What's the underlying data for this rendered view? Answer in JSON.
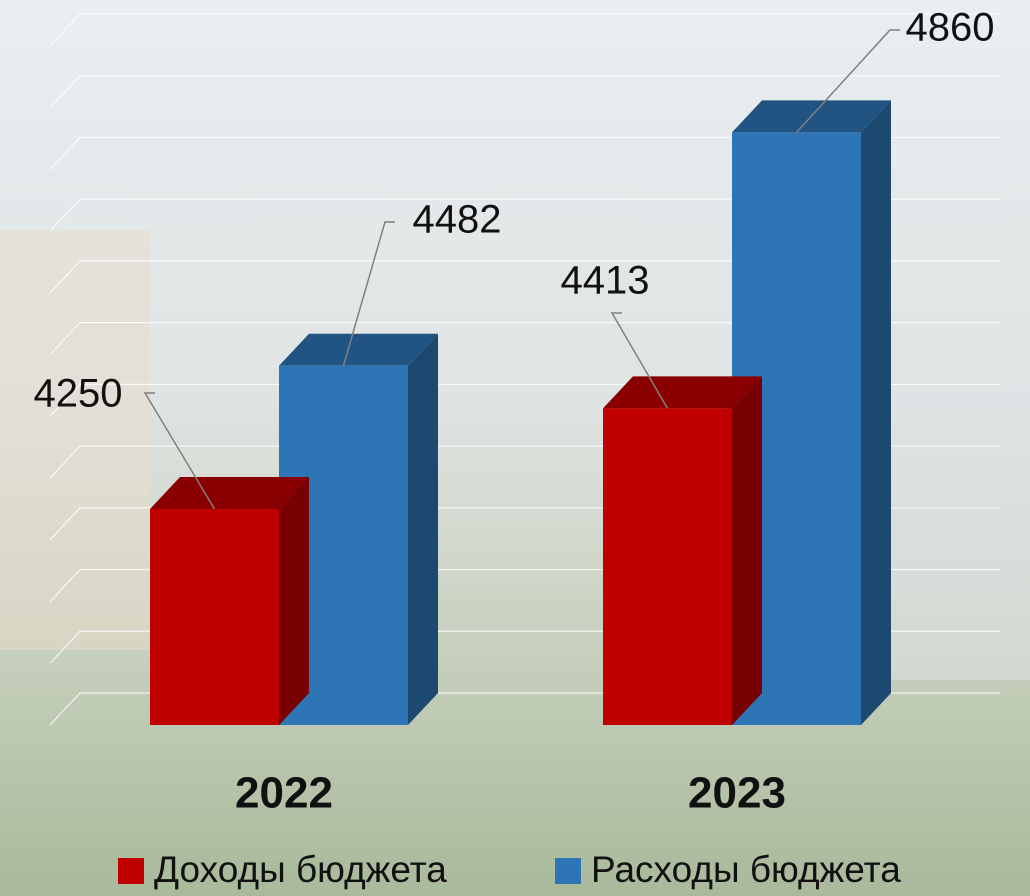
{
  "chart_data": {
    "type": "bar3d",
    "categories": [
      "2022",
      "2023"
    ],
    "series": [
      {
        "name": "Доходы бюджета",
        "color": "#c00000",
        "values": [
          4250,
          4413
        ]
      },
      {
        "name": "Расходы бюджета",
        "color": "#2e75b6",
        "values": [
          4482,
          4860
        ]
      }
    ],
    "ylim": [
      3900,
      5000
    ],
    "yticks": [
      3900,
      4000,
      4100,
      4200,
      4300,
      4400,
      4500,
      4600,
      4700,
      4800,
      4900,
      5000
    ],
    "grid": true,
    "legend": "bottom"
  }
}
